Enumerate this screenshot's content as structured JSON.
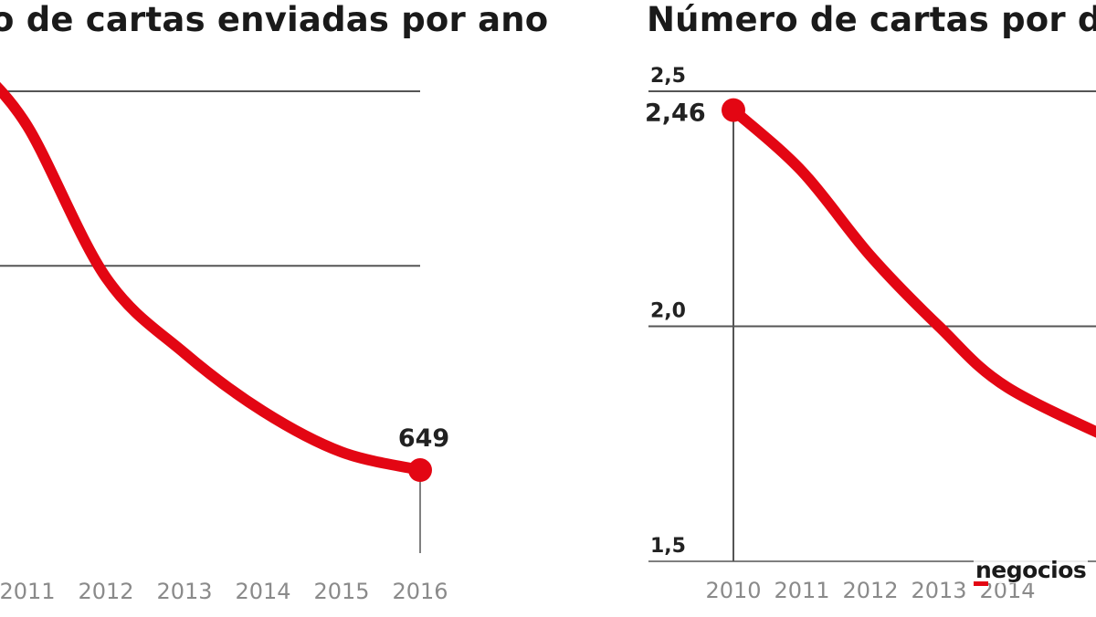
{
  "chart_data": [
    {
      "type": "line",
      "title": "o de cartas enviadas por ano",
      "x": [
        "2011",
        "2012",
        "2013",
        "2014",
        "2015",
        "2016"
      ],
      "values": [
        1240,
        980,
        850,
        750,
        680,
        649
      ],
      "ylim": [
        500,
        1300
      ],
      "gridlines": [
        1000,
        1300
      ],
      "data_labels": [
        {
          "index": 5,
          "text": "649"
        }
      ],
      "color": "#e30613",
      "grid": true
    },
    {
      "type": "line",
      "title": "Número de cartas por d",
      "x": [
        "2010",
        "2011",
        "2012",
        "2013",
        "2014"
      ],
      "values": [
        2.46,
        2.33,
        2.15,
        2.0,
        1.87
      ],
      "ylim": [
        1.5,
        2.5
      ],
      "yticks": [
        "2,5",
        "2,0",
        "1,5"
      ],
      "yticks_values": [
        2.5,
        2.0,
        1.5
      ],
      "data_labels": [
        {
          "index": 0,
          "text": "2,46"
        }
      ],
      "color": "#e30613",
      "grid": true
    }
  ],
  "logo": {
    "text": "negocios"
  }
}
